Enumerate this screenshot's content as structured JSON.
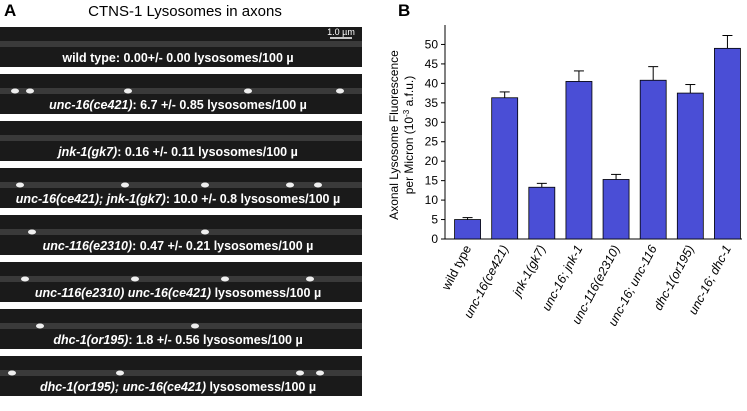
{
  "panel_a": {
    "letter": "A",
    "title": "CTNS-1 Lysosomes in axons",
    "scale_bar": "1.0 µm",
    "strips": [
      {
        "text": "wild type: 0.00+/- 0.00 lysosomes/100 µ"
      },
      {
        "gene": "unc-16(ce421)",
        "text": ": 6.7 +/- 0.85 lysosomes/100 µ"
      },
      {
        "gene": "jnk-1(gk7)",
        "text": ": 0.16 +/- 0.11 lysosomes/100 µ"
      },
      {
        "gene": "unc-16(ce421); jnk-1(gk7)",
        "text": ": 10.0 +/- 0.8 lysosomes/100 µ"
      },
      {
        "gene": "unc-116(e2310)",
        "text": ": 0.47 +/- 0.21 lysosomes/100 µ"
      },
      {
        "gene": "unc-116(e2310) unc-16(ce421)",
        "text": " lysosomess/100 µ"
      },
      {
        "gene": "dhc-1(or195)",
        "text": ": 1.8 +/- 0.56 lysosomes/100 µ"
      },
      {
        "gene": "dhc-1(or195); unc-16(ce421)",
        "text": " lysosomess/100 µ"
      }
    ]
  },
  "chart_data": {
    "type": "bar",
    "letter": "B",
    "ylabel": "Axonal Lysosome Fluorescence",
    "ylabel_line2": {
      "before": "per Micron (10",
      "sup": "-3",
      "after": " a.f.u.)"
    },
    "categories": [
      "wild type",
      "unc-16(ce421)",
      "jnk-1(gk7)",
      "unc-16; jnk-1",
      "unc-116(e2310)",
      "unc-16; unc-116",
      "dhc-1(or195)",
      "unc-16; dhc-1"
    ],
    "category_italic": [
      false,
      true,
      true,
      true,
      true,
      true,
      true,
      true
    ],
    "values": [
      5,
      36.3,
      13.3,
      40.5,
      15.3,
      40.8,
      37.5,
      49
    ],
    "errors": [
      0.5,
      1.5,
      1,
      2.7,
      1.3,
      3.5,
      2.2,
      3.3
    ],
    "color": "#4a4ed6",
    "ylim": [
      0,
      55
    ],
    "yticks": [
      0,
      5,
      10,
      15,
      20,
      25,
      30,
      35,
      40,
      45,
      50
    ]
  }
}
